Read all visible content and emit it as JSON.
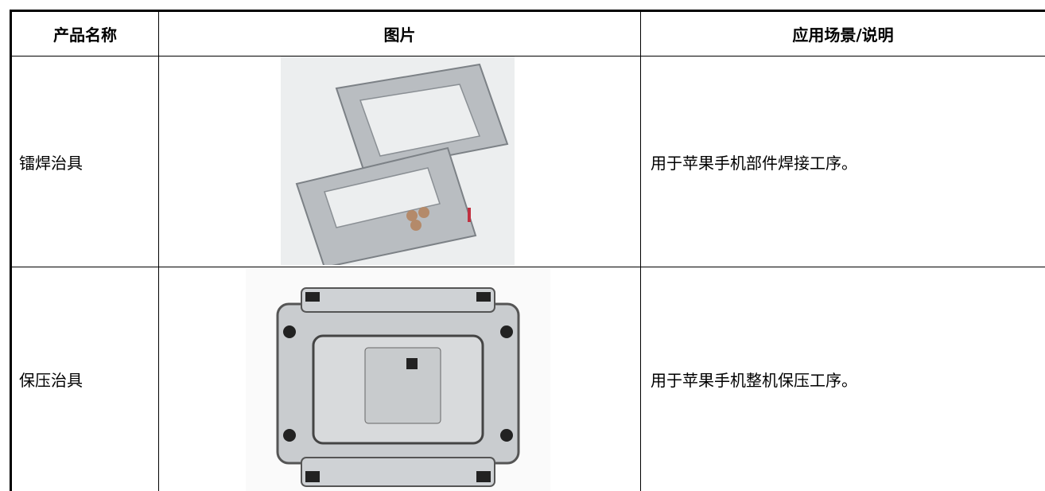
{
  "table": {
    "header": [
      "产品名称",
      "图片",
      "应用场景/说明"
    ],
    "rows": [
      [
        "镭焊治具",
        "用于苹果手机部件焊接工序。"
      ],
      [
        "保压治具",
        "用于苹果手机整机保压工序。"
      ]
    ]
  }
}
